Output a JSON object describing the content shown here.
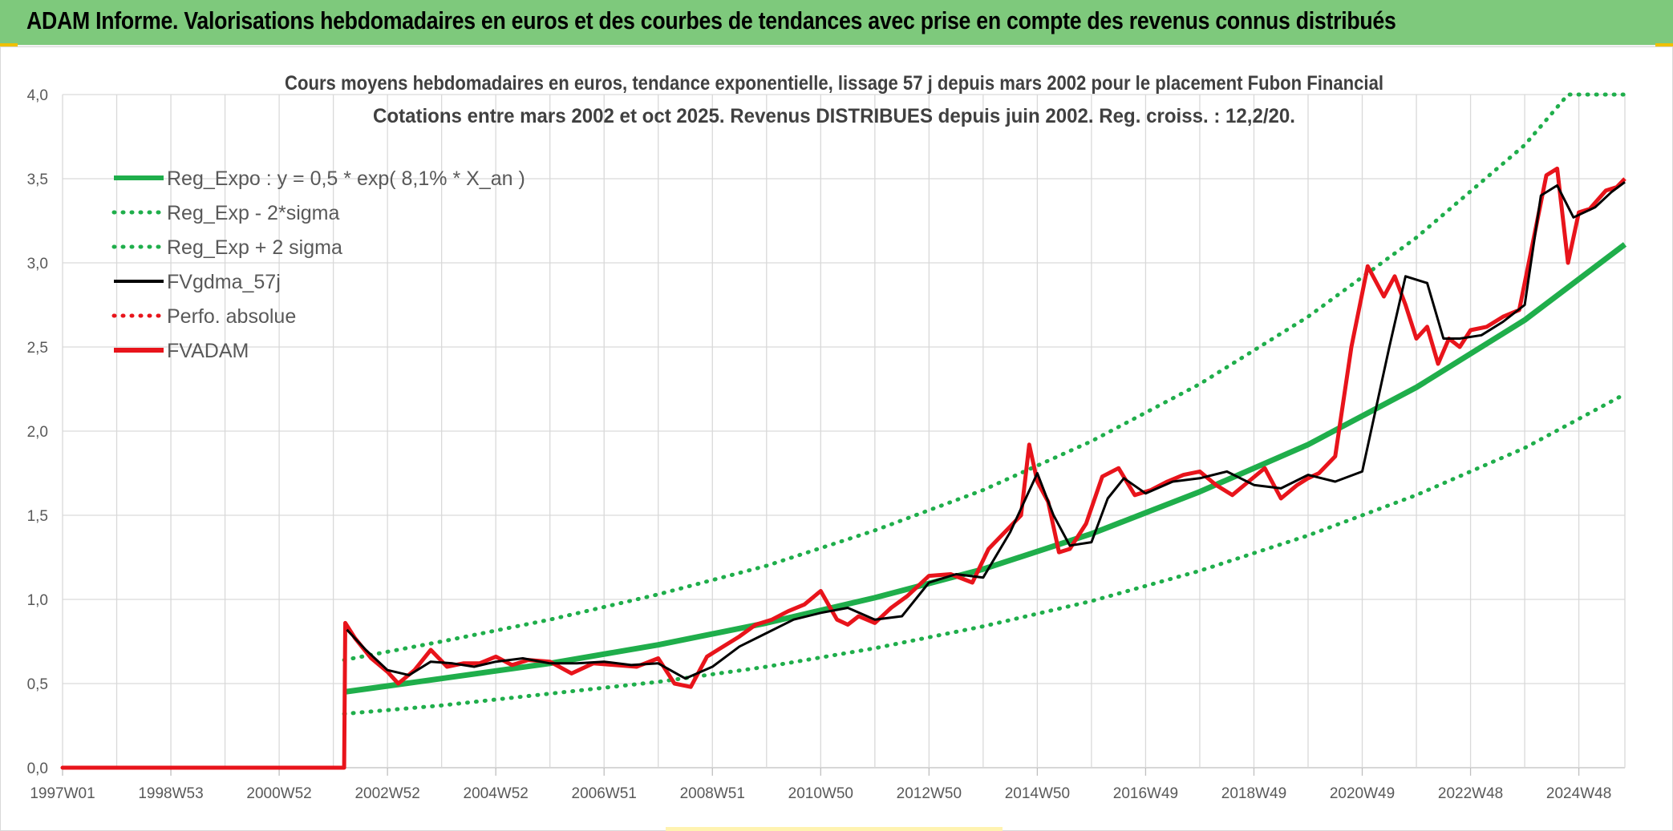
{
  "banner": {
    "title": "ADAM Informe. Valorisations hebdomadaires en euros et des courbes de tendances avec prise en compte des revenus connus distribués"
  },
  "chart_data": {
    "type": "line",
    "title": "Cours moyens hebdomadaires en euros, tendance exponentielle, lissage 57 j depuis mars 2002 pour le placement Fubon Financial",
    "subtitle": "Cotations entre mars 2002 et oct 2025. Revenus DISTRIBUES depuis juin 2002. Reg. croiss. : 12,2/20.",
    "xlabel": "",
    "ylabel": "",
    "x_range": [
      1997.0,
      2025.85
    ],
    "ylim": [
      0,
      4.0
    ],
    "y_ticks": [
      "0,0",
      "0,5",
      "1,0",
      "1,5",
      "2,0",
      "2,5",
      "3,0",
      "3,5",
      "4,0"
    ],
    "x_ticks": [
      {
        "label": "1997W01",
        "year": 1997.0
      },
      {
        "label": "1998W53",
        "year": 1999.0
      },
      {
        "label": "2000W52",
        "year": 2001.0
      },
      {
        "label": "2002W52",
        "year": 2003.0
      },
      {
        "label": "2004W52",
        "year": 2005.0
      },
      {
        "label": "2006W51",
        "year": 2007.0
      },
      {
        "label": "2008W51",
        "year": 2009.0
      },
      {
        "label": "2010W50",
        "year": 2011.0
      },
      {
        "label": "2012W50",
        "year": 2013.0
      },
      {
        "label": "2014W50",
        "year": 2015.0
      },
      {
        "label": "2016W49",
        "year": 2017.0
      },
      {
        "label": "2018W49",
        "year": 2019.0
      },
      {
        "label": "2020W49",
        "year": 2021.0
      },
      {
        "label": "2022W48",
        "year": 2023.0
      },
      {
        "label": "2024W48",
        "year": 2025.0
      }
    ],
    "grid": true,
    "legend_position": "top-left",
    "series": [
      {
        "name": "Reg_Expo : y = 0,5 * exp( 8,1% *  X_an )",
        "color": "#1fae4b",
        "style": "solid-thick",
        "x": [
          2002.2,
          2004,
          2006,
          2008,
          2010,
          2012,
          2014,
          2016,
          2018,
          2020,
          2022,
          2024,
          2025.85
        ],
        "y": [
          0.45,
          0.53,
          0.62,
          0.73,
          0.86,
          1.01,
          1.18,
          1.39,
          1.64,
          1.92,
          2.26,
          2.66,
          3.11
        ]
      },
      {
        "name": "Reg_Exp - 2*sigma",
        "color": "#1fae4b",
        "style": "dotted",
        "x": [
          2002.2,
          2004,
          2006,
          2008,
          2010,
          2012,
          2014,
          2016,
          2018,
          2020,
          2022,
          2024,
          2025.85
        ],
        "y": [
          0.32,
          0.37,
          0.44,
          0.51,
          0.6,
          0.71,
          0.84,
          0.99,
          1.17,
          1.38,
          1.62,
          1.9,
          2.22
        ]
      },
      {
        "name": "Reg_Exp + 2 sigma",
        "color": "#1fae4b",
        "style": "dotted",
        "x": [
          2002.2,
          2004,
          2006,
          2008,
          2010,
          2012,
          2014,
          2016,
          2018,
          2020,
          2022,
          2024,
          2024.8,
          2025.85
        ],
        "y": [
          0.64,
          0.75,
          0.88,
          1.03,
          1.2,
          1.41,
          1.65,
          1.94,
          2.28,
          2.68,
          3.15,
          3.7,
          4.0,
          4.0
        ]
      },
      {
        "name": "FVgdma_57j",
        "color": "#000000",
        "style": "solid",
        "x": [
          2002.25,
          2002.6,
          2003.0,
          2003.4,
          2003.8,
          2004.2,
          2004.6,
          2005.0,
          2005.5,
          2006.0,
          2006.5,
          2007.0,
          2007.5,
          2008.0,
          2008.5,
          2009.0,
          2009.5,
          2010.0,
          2010.5,
          2011.0,
          2011.5,
          2012.0,
          2012.5,
          2013.0,
          2013.5,
          2014.0,
          2014.5,
          2015.0,
          2015.3,
          2015.6,
          2016.0,
          2016.3,
          2016.6,
          2017.0,
          2017.5,
          2018.0,
          2018.5,
          2019.0,
          2019.5,
          2020.0,
          2020.5,
          2021.0,
          2021.5,
          2021.8,
          2022.2,
          2022.5,
          2022.8,
          2023.2,
          2023.6,
          2024.0,
          2024.3,
          2024.6,
          2024.9,
          2025.3,
          2025.6,
          2025.85
        ],
        "y": [
          0.82,
          0.7,
          0.58,
          0.55,
          0.63,
          0.62,
          0.6,
          0.63,
          0.65,
          0.62,
          0.62,
          0.63,
          0.61,
          0.62,
          0.53,
          0.6,
          0.72,
          0.8,
          0.88,
          0.92,
          0.95,
          0.88,
          0.9,
          1.1,
          1.15,
          1.13,
          1.4,
          1.75,
          1.5,
          1.32,
          1.34,
          1.6,
          1.72,
          1.63,
          1.7,
          1.72,
          1.76,
          1.68,
          1.66,
          1.74,
          1.7,
          1.76,
          2.5,
          2.92,
          2.88,
          2.55,
          2.55,
          2.57,
          2.65,
          2.75,
          3.4,
          3.46,
          3.27,
          3.33,
          3.42,
          3.48
        ]
      },
      {
        "name": "Perfo. absolue",
        "color": "#e8141b",
        "style": "dotted",
        "x": [
          1997.0,
          2002.2
        ],
        "y": [
          0.0,
          0.0
        ]
      },
      {
        "name": "FVADAM",
        "color": "#e8141b",
        "style": "solid-thick",
        "x": [
          1997.0,
          2002.2,
          2002.22,
          2002.4,
          2002.7,
          2003.0,
          2003.2,
          2003.5,
          2003.8,
          2004.1,
          2004.4,
          2004.7,
          2005.0,
          2005.3,
          2005.6,
          2006.0,
          2006.4,
          2006.8,
          2007.2,
          2007.6,
          2008.0,
          2008.3,
          2008.6,
          2008.9,
          2009.2,
          2009.5,
          2009.8,
          2010.1,
          2010.4,
          2010.7,
          2011.0,
          2011.3,
          2011.5,
          2011.7,
          2012.0,
          2012.3,
          2012.6,
          2013.0,
          2013.4,
          2013.8,
          2014.1,
          2014.4,
          2014.7,
          2014.85,
          2015.0,
          2015.2,
          2015.4,
          2015.6,
          2015.9,
          2016.2,
          2016.5,
          2016.8,
          2017.1,
          2017.4,
          2017.7,
          2018.0,
          2018.3,
          2018.6,
          2018.9,
          2019.2,
          2019.5,
          2019.8,
          2020.0,
          2020.2,
          2020.5,
          2020.8,
          2021.1,
          2021.4,
          2021.6,
          2021.8,
          2022.0,
          2022.2,
          2022.4,
          2022.6,
          2022.8,
          2023.0,
          2023.3,
          2023.6,
          2023.9,
          2024.2,
          2024.4,
          2024.6,
          2024.8,
          2025.0,
          2025.2,
          2025.5,
          2025.7,
          2025.85
        ],
        "y": [
          0.0,
          0.0,
          0.86,
          0.77,
          0.65,
          0.57,
          0.5,
          0.58,
          0.7,
          0.6,
          0.62,
          0.62,
          0.66,
          0.61,
          0.64,
          0.63,
          0.56,
          0.62,
          0.61,
          0.6,
          0.65,
          0.5,
          0.48,
          0.66,
          0.72,
          0.78,
          0.85,
          0.88,
          0.93,
          0.97,
          1.05,
          0.88,
          0.85,
          0.9,
          0.86,
          0.95,
          1.02,
          1.14,
          1.15,
          1.1,
          1.3,
          1.4,
          1.5,
          1.92,
          1.7,
          1.58,
          1.28,
          1.3,
          1.45,
          1.73,
          1.78,
          1.62,
          1.65,
          1.7,
          1.74,
          1.76,
          1.68,
          1.62,
          1.7,
          1.78,
          1.6,
          1.68,
          1.72,
          1.75,
          1.85,
          2.5,
          2.98,
          2.8,
          2.92,
          2.75,
          2.55,
          2.62,
          2.4,
          2.55,
          2.5,
          2.6,
          2.62,
          2.68,
          2.72,
          3.2,
          3.52,
          3.56,
          3.0,
          3.3,
          3.32,
          3.43,
          3.45,
          3.5
        ]
      }
    ]
  }
}
